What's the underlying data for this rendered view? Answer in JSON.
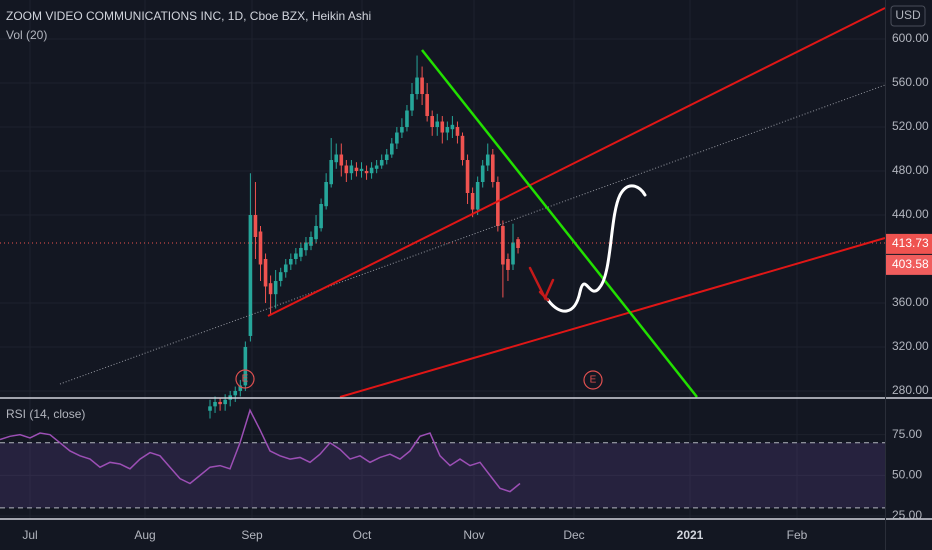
{
  "chart_data": {
    "type": "candlestick",
    "title": "ZOOM VIDEO COMMUNICATIONS INC, 1D, Cboe BZX, Heikin Ashi",
    "subtitle": "Vol (20)",
    "currency": "USD",
    "up_color": "#26a69a",
    "down_color": "#ef5350",
    "grid": true,
    "ylim": [
      274.5,
      635.5
    ],
    "yticks": [
      {
        "value": 600,
        "label": "600.00"
      },
      {
        "value": 560,
        "label": "560.00"
      },
      {
        "value": 520,
        "label": "520.00"
      },
      {
        "value": 480,
        "label": "480.00"
      },
      {
        "value": 440,
        "label": "440.00"
      },
      {
        "value": 360,
        "label": "360.00"
      },
      {
        "value": 320,
        "label": "320.00"
      },
      {
        "value": 280,
        "label": "280.00"
      }
    ],
    "price_markers": [
      413.73,
      403.58
    ],
    "xticks": [
      "Jul",
      "Aug",
      "Sep",
      "Oct",
      "Nov",
      "Dec",
      "2021",
      "Feb"
    ],
    "events": [
      "E",
      "E"
    ],
    "series": [
      {
        "open": [
          262,
          266,
          270,
          268,
          272,
          276,
          280,
          285,
          330,
          440,
          425,
          400,
          378,
          368,
          380,
          388,
          395,
          400,
          402,
          408,
          412,
          418,
          428,
          448,
          468,
          488,
          495,
          485,
          478,
          483,
          480,
          480,
          478,
          482,
          485,
          490,
          495,
          505,
          515,
          520,
          535,
          550,
          565,
          550,
          530,
          520,
          525,
          515,
          518,
          520,
          512,
          490,
          460,
          445,
          470,
          485,
          495,
          470,
          430,
          400,
          395,
          418
        ],
        "high": [
          272,
          275,
          274,
          277,
          280,
          284,
          290,
          325,
          478,
          470,
          430,
          405,
          385,
          390,
          392,
          400,
          405,
          410,
          415,
          420,
          425,
          440,
          455,
          478,
          510,
          505,
          505,
          490,
          490,
          488,
          488,
          485,
          488,
          490,
          495,
          500,
          510,
          520,
          528,
          540,
          560,
          585,
          575,
          560,
          535,
          532,
          530,
          525,
          530,
          525,
          515,
          495,
          465,
          475,
          490,
          505,
          500,
          475,
          435,
          405,
          432,
          420
        ],
        "low": [
          255,
          260,
          262,
          262,
          266,
          270,
          275,
          280,
          325,
          400,
          380,
          360,
          350,
          355,
          375,
          383,
          390,
          395,
          398,
          403,
          408,
          414,
          425,
          445,
          465,
          482,
          475,
          470,
          472,
          475,
          474,
          472,
          473,
          478,
          482,
          486,
          492,
          500,
          510,
          516,
          530,
          545,
          540,
          525,
          512,
          512,
          505,
          508,
          510,
          505,
          485,
          450,
          438,
          440,
          465,
          480,
          465,
          425,
          365,
          380,
          390,
          405
        ],
        "close": [
          266,
          270,
          268,
          272,
          276,
          280,
          285,
          320,
          440,
          420,
          395,
          375,
          368,
          380,
          388,
          395,
          400,
          405,
          410,
          415,
          420,
          430,
          450,
          470,
          490,
          495,
          485,
          478,
          485,
          480,
          482,
          478,
          483,
          485,
          490,
          495,
          505,
          515,
          520,
          535,
          550,
          565,
          550,
          530,
          520,
          525,
          515,
          520,
          522,
          512,
          490,
          460,
          445,
          470,
          485,
          495,
          470,
          430,
          395,
          390,
          415,
          410
        ]
      }
    ],
    "rsi": {
      "title": "RSI (14, close)",
      "color": "#9c4fb5",
      "ylim": [
        23.8,
        96.3
      ],
      "yticks": [
        {
          "value": 75,
          "label": "75.00"
        },
        {
          "value": 50,
          "label": "50.00"
        },
        {
          "value": 25,
          "label": "25.00"
        }
      ],
      "bands": [
        30,
        70
      ],
      "values": [
        72,
        74,
        75,
        73,
        76,
        75,
        70,
        65,
        62,
        60,
        55,
        58,
        57,
        54,
        60,
        64,
        62,
        55,
        48,
        45,
        50,
        55,
        56,
        54,
        70,
        90,
        78,
        65,
        62,
        60,
        61,
        58,
        63,
        70,
        66,
        60,
        62,
        58,
        61,
        63,
        60,
        65,
        74,
        76,
        62,
        56,
        60,
        56,
        58,
        50,
        42,
        40,
        45
      ]
    }
  }
}
